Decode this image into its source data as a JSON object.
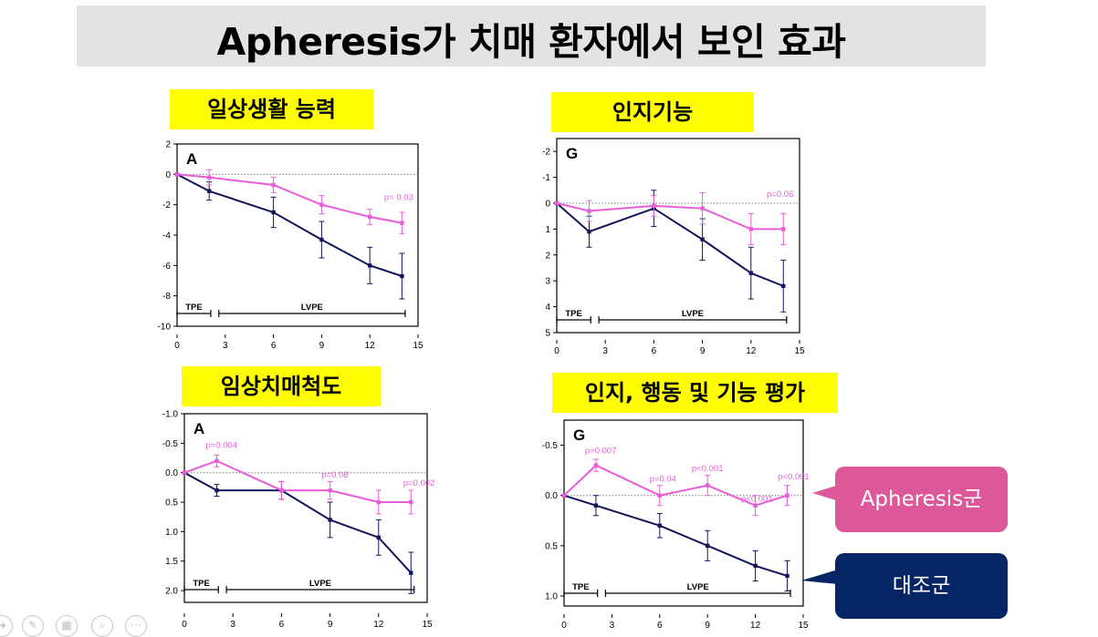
{
  "title": "Apheresis가 치매 환자에서 보인 효과",
  "colors": {
    "apheresis": "#e95bd8",
    "control": "#12155c",
    "callout_pink": "#dd5898",
    "callout_navy": "#062565",
    "highlight": "#fffd00"
  },
  "legend": {
    "apheresis": "Apheresis군",
    "control": "대조군"
  },
  "toolbar_icons": [
    "slide-arrow-icon",
    "pen-icon",
    "slides-grid-icon",
    "zoom-icon",
    "more-options-icon"
  ],
  "chart_data": [
    {
      "id": "daily-living",
      "type": "line",
      "title": "일상생활 능력",
      "panel_letter": "A",
      "x": [
        0,
        2,
        6,
        9,
        12,
        14
      ],
      "xticks": [
        0,
        3,
        6,
        9,
        12,
        15
      ],
      "xlim": [
        0,
        15
      ],
      "yticks": [
        2,
        0,
        -2,
        -4,
        -6,
        -8,
        -10
      ],
      "ylim": [
        -10,
        2
      ],
      "y_reversed": false,
      "series": [
        {
          "name": "Apheresis군",
          "values": [
            0,
            -0.2,
            -0.7,
            -2.0,
            -2.8,
            -3.2
          ],
          "err": [
            0,
            0.5,
            0.5,
            0.6,
            0.5,
            0.7
          ]
        },
        {
          "name": "대조군",
          "values": [
            0,
            -1.1,
            -2.5,
            -4.3,
            -6.0,
            -6.7
          ],
          "err": [
            0,
            0.6,
            1.0,
            1.2,
            1.2,
            1.5
          ]
        }
      ],
      "annotations": [
        {
          "text": "p= 0.03",
          "x": 13.8,
          "y": -1.7
        }
      ],
      "phases": [
        {
          "label": "TPE",
          "x0": 0,
          "x1": 2.1
        },
        {
          "label": "LVPE",
          "x0": 2.6,
          "x1": 14.2
        }
      ]
    },
    {
      "id": "cognition",
      "type": "line",
      "title": "인지기능",
      "panel_letter": "G",
      "x": [
        0,
        2,
        6,
        9,
        12,
        14
      ],
      "xticks": [
        0,
        3,
        6,
        9,
        12,
        15
      ],
      "xlim": [
        0,
        15
      ],
      "yticks": [
        -2,
        -1,
        0,
        1,
        2,
        3,
        4,
        5
      ],
      "ylim": [
        -2.5,
        5
      ],
      "y_reversed": true,
      "series": [
        {
          "name": "Apheresis군",
          "values": [
            0,
            0.3,
            0.1,
            0.2,
            1.0,
            1.0
          ],
          "err": [
            0,
            0.4,
            0.4,
            0.6,
            0.6,
            0.6
          ]
        },
        {
          "name": "대조군",
          "values": [
            0,
            1.1,
            0.2,
            1.4,
            2.7,
            3.2
          ],
          "err": [
            0,
            0.6,
            0.7,
            0.8,
            1.0,
            1.0
          ]
        }
      ],
      "annotations": [
        {
          "text": "p=0.06",
          "x": 13.8,
          "y": -0.25
        }
      ],
      "phases": [
        {
          "label": "TPE",
          "x0": 0,
          "x1": 2.1
        },
        {
          "label": "LVPE",
          "x0": 2.6,
          "x1": 14.2
        }
      ]
    },
    {
      "id": "cdr",
      "type": "line",
      "title": "임상치매척도",
      "panel_letter": "A",
      "x": [
        0,
        2,
        6,
        9,
        12,
        14
      ],
      "xticks": [
        0,
        3,
        6,
        9,
        12,
        15
      ],
      "xlim": [
        0,
        15
      ],
      "yticks": [
        -1.0,
        -0.5,
        0.0,
        0.5,
        1.0,
        1.5,
        2.0
      ],
      "ytick_labels": [
        "-1.0",
        "-0.5",
        "0.0",
        "0.5",
        "1.0",
        "1.5",
        "2.0"
      ],
      "ylim": [
        -1.0,
        2.2
      ],
      "y_reversed": true,
      "series": [
        {
          "name": "Apheresis군",
          "values": [
            0,
            -0.2,
            0.3,
            0.3,
            0.5,
            0.5
          ],
          "err": [
            0,
            0.1,
            0.15,
            0.15,
            0.2,
            0.2
          ]
        },
        {
          "name": "대조군",
          "values": [
            0,
            0.3,
            0.3,
            0.8,
            1.1,
            1.7
          ],
          "err": [
            0,
            0.1,
            0.15,
            0.3,
            0.3,
            0.35
          ]
        }
      ],
      "annotations": [
        {
          "text": "p=0.004",
          "x": 2.3,
          "y": -0.42
        },
        {
          "text": "p=0.08",
          "x": 9.3,
          "y": 0.08
        },
        {
          "text": "p=0.002",
          "x": 14.5,
          "y": 0.22
        }
      ],
      "phases": [
        {
          "label": "TPE",
          "x0": 0,
          "x1": 2.1
        },
        {
          "label": "LVPE",
          "x0": 2.6,
          "x1": 14.2
        }
      ]
    },
    {
      "id": "cbb",
      "type": "line",
      "title": "인지, 행동 및 기능 평가",
      "panel_letter": "G",
      "x": [
        0,
        2,
        6,
        9,
        12,
        14
      ],
      "xticks": [
        0,
        3,
        6,
        9,
        12,
        15
      ],
      "xlim": [
        0,
        15
      ],
      "yticks": [
        -0.5,
        0.0,
        0.5,
        1.0
      ],
      "ytick_labels": [
        "-0.5",
        "0.0",
        "0.5",
        "1.0"
      ],
      "ylim": [
        -0.75,
        1.1
      ],
      "y_reversed": true,
      "series": [
        {
          "name": "Apheresis군",
          "values": [
            0,
            -0.3,
            0.0,
            -0.1,
            0.1,
            0.0
          ],
          "err": [
            0,
            0.06,
            0.1,
            0.1,
            0.1,
            0.1
          ]
        },
        {
          "name": "대조군",
          "values": [
            0,
            0.1,
            0.3,
            0.5,
            0.7,
            0.8
          ],
          "err": [
            0,
            0.1,
            0.12,
            0.15,
            0.15,
            0.15
          ]
        }
      ],
      "annotations": [
        {
          "text": "p=0.007",
          "x": 2.3,
          "y": -0.42
        },
        {
          "text": "p=0.04",
          "x": 6.2,
          "y": -0.14
        },
        {
          "text": "p<0.001",
          "x": 9.0,
          "y": -0.24
        },
        {
          "text": "p<0.001",
          "x": 12.1,
          "y": 0.06
        },
        {
          "text": "p<0.001",
          "x": 14.4,
          "y": -0.16
        }
      ],
      "phases": [
        {
          "label": "TPE",
          "x0": 0,
          "x1": 2.1
        },
        {
          "label": "LVPE",
          "x0": 2.6,
          "x1": 14.2
        }
      ]
    }
  ]
}
